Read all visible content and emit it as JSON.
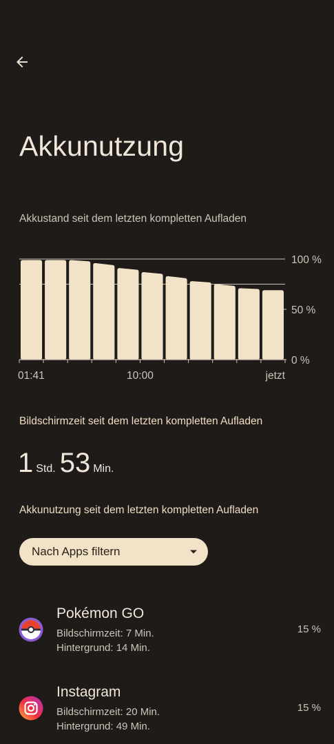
{
  "header": {
    "back_icon": "arrow-left-icon",
    "title": "Akkunutzung"
  },
  "battery_chart": {
    "title": "Akkustand seit dem letzten kompletten Aufladen"
  },
  "chart_data": {
    "type": "bar",
    "title": "Akkustand seit dem letzten kompletten Aufladen",
    "x_tick_labels": [
      "01:41",
      "10:00",
      "jetzt"
    ],
    "y_tick_labels": [
      "100 %",
      "50 %",
      "0 %"
    ],
    "ylim": [
      0,
      100
    ],
    "grid": true,
    "series": [
      {
        "values": [
          99,
          99,
          99,
          96,
          91,
          87,
          83,
          78,
          75,
          71,
          69
        ]
      }
    ],
    "bar_color": "#f1e2c8"
  },
  "screen_time": {
    "title": "Bildschirmzeit seit dem letzten kompletten Aufladen",
    "hours": "1",
    "hours_unit": "Std.",
    "minutes": "53",
    "minutes_unit": "Min."
  },
  "usage": {
    "title": "Akkunutzung seit dem letzten kompletten Aufladen",
    "filter_label": "Nach Apps filtern",
    "filter_icon": "dropdown-arrow-icon"
  },
  "apps": [
    {
      "name": "Pokémon GO",
      "screen_time": "Bildschirmzeit: 7 Min.",
      "background": "Hintergrund: 14 Min.",
      "percent": "15 %",
      "icon": "pokeball-icon"
    },
    {
      "name": "Instagram",
      "screen_time": "Bildschirmzeit: 20 Min.",
      "background": "Hintergrund: 49 Min.",
      "percent": "15 %",
      "icon": "instagram-icon"
    }
  ],
  "colors": {
    "background": "#1e1b19",
    "accent": "#f1e2c8",
    "section_title": "#f0dcc0"
  }
}
